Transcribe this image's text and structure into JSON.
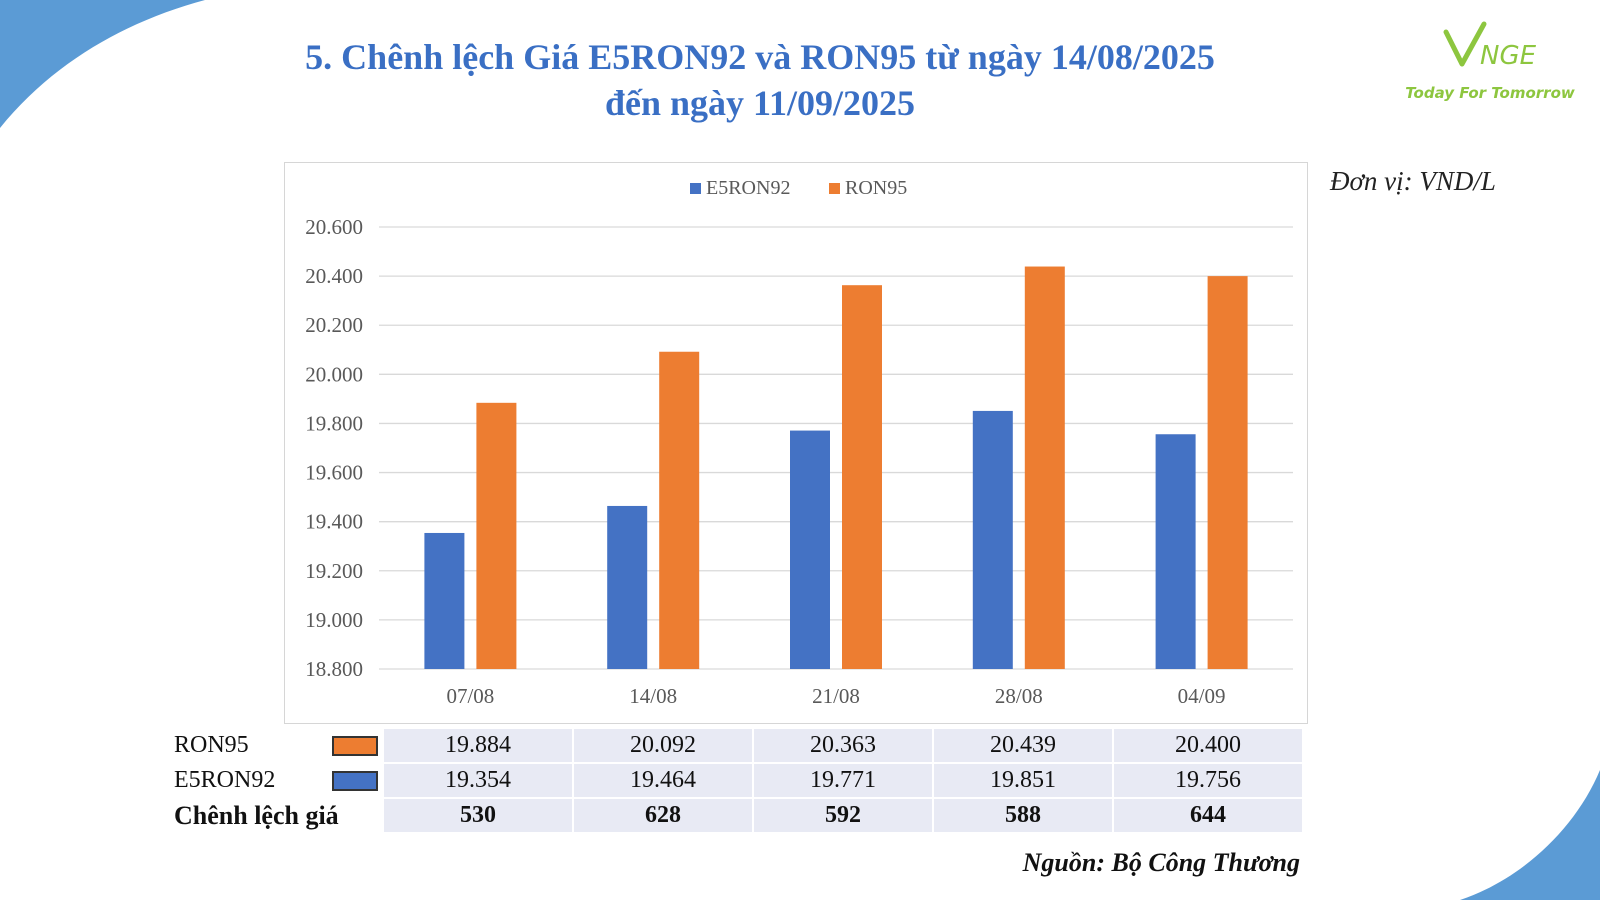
{
  "title": {
    "line1": "5. Chênh lệch Giá E5RON92 và RON95 từ ngày 14/08/2025",
    "line2": "đến ngày 11/09/2025"
  },
  "logo": {
    "mark": "VNGE",
    "tagline": "Today For Tomorrow",
    "color": "#8dc63f"
  },
  "unit_label": "Đơn vị: VND/L",
  "source": "Nguồn: Bộ Công Thương",
  "colors": {
    "e5ron92": "#4472c4",
    "ron95": "#ed7d31",
    "title": "#3a6fc4",
    "accent_corner": "#5b9bd5"
  },
  "chart_data": {
    "type": "bar",
    "categories": [
      "07/08",
      "14/08",
      "21/08",
      "28/08",
      "04/09"
    ],
    "series": [
      {
        "name": "E5RON92",
        "values": [
          19354,
          19464,
          19771,
          19851,
          19756
        ],
        "color": "#4472c4"
      },
      {
        "name": "RON95",
        "values": [
          19884,
          20092,
          20363,
          20439,
          20400
        ],
        "color": "#ed7d31"
      }
    ],
    "ylim": [
      18800,
      20600
    ],
    "yticks": [
      18800,
      19000,
      19200,
      19400,
      19600,
      19800,
      20000,
      20200,
      20400,
      20600
    ],
    "ytick_labels": [
      "18.800",
      "19.000",
      "19.200",
      "19.400",
      "19.600",
      "19.800",
      "20.000",
      "20.200",
      "20.400",
      "20.600"
    ],
    "legend_position": "top-center",
    "grid": true
  },
  "table": {
    "rows": [
      {
        "label": "RON95",
        "swatch": "#ed7d31",
        "values": [
          "19.884",
          "20.092",
          "20.363",
          "20.439",
          "20.400"
        ]
      },
      {
        "label": "E5RON92",
        "swatch": "#4472c4",
        "values": [
          "19.354",
          "19.464",
          "19.771",
          "19.851",
          "19.756"
        ]
      },
      {
        "label": "Chênh lệch giá",
        "values": [
          "530",
          "628",
          "592",
          "588",
          "644"
        ]
      }
    ]
  }
}
